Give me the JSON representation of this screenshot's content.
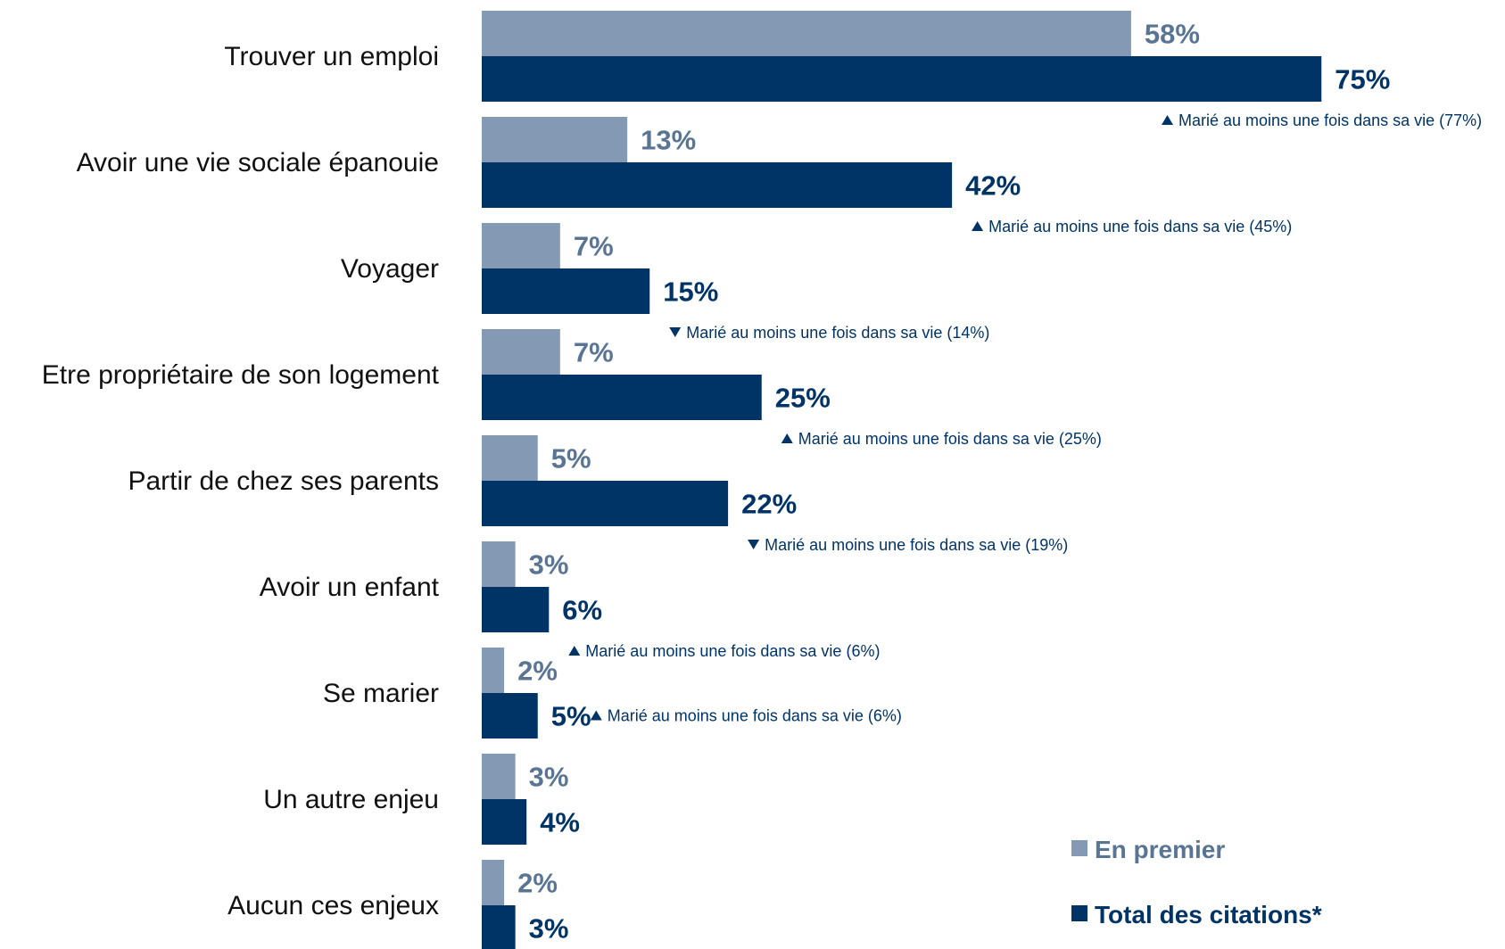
{
  "chart_data": {
    "type": "bar",
    "orientation": "horizontal",
    "categories": [
      "Trouver un emploi",
      "Avoir une vie sociale épanouie",
      "Voyager",
      "Etre propriétaire de son logement",
      "Partir de chez ses parents",
      "Avoir un enfant",
      "Se marier",
      "Un autre enjeu",
      "Aucun ces enjeux"
    ],
    "series": [
      {
        "name": "En premier",
        "color": "#8499b3",
        "values": [
          58,
          13,
          7,
          7,
          5,
          3,
          2,
          3,
          2
        ],
        "labels": [
          "58%",
          "13%",
          "7%",
          "7%",
          "5%",
          "3%",
          "2%",
          "3%",
          "2%"
        ]
      },
      {
        "name": "Total des citations*",
        "color": "#003366",
        "values": [
          75,
          42,
          15,
          25,
          22,
          6,
          5,
          4,
          3
        ],
        "labels": [
          "75%",
          "42%",
          "15%",
          "25%",
          "22%",
          "6%",
          "5%",
          "4%",
          "3%"
        ]
      }
    ],
    "annotations": [
      {
        "category_index": 0,
        "direction": "up",
        "text": "Marié au moins une fois dans sa vie (77%)"
      },
      {
        "category_index": 1,
        "direction": "up",
        "text": "Marié au moins une fois dans sa vie (45%)"
      },
      {
        "category_index": 2,
        "direction": "down",
        "text": "Marié au moins une fois dans sa vie (14%)"
      },
      {
        "category_index": 3,
        "direction": "up",
        "text": "Marié au moins une fois dans sa vie (25%)"
      },
      {
        "category_index": 4,
        "direction": "down",
        "text": "Marié au moins une fois dans sa vie (19%)"
      },
      {
        "category_index": 5,
        "direction": "up",
        "text": "Marié au moins une fois dans sa vie (6%)"
      },
      {
        "category_index": 6,
        "direction": "up",
        "text": "Marié au moins une fois dans sa vie (6%)"
      }
    ],
    "title": "",
    "xlabel": "",
    "ylabel": "",
    "xlim": [
      0,
      100
    ],
    "grid": false,
    "legend_position": "bottom-right",
    "label_colors": {
      "first": "#5a7493",
      "total": "#003366",
      "note": "#003366"
    }
  }
}
